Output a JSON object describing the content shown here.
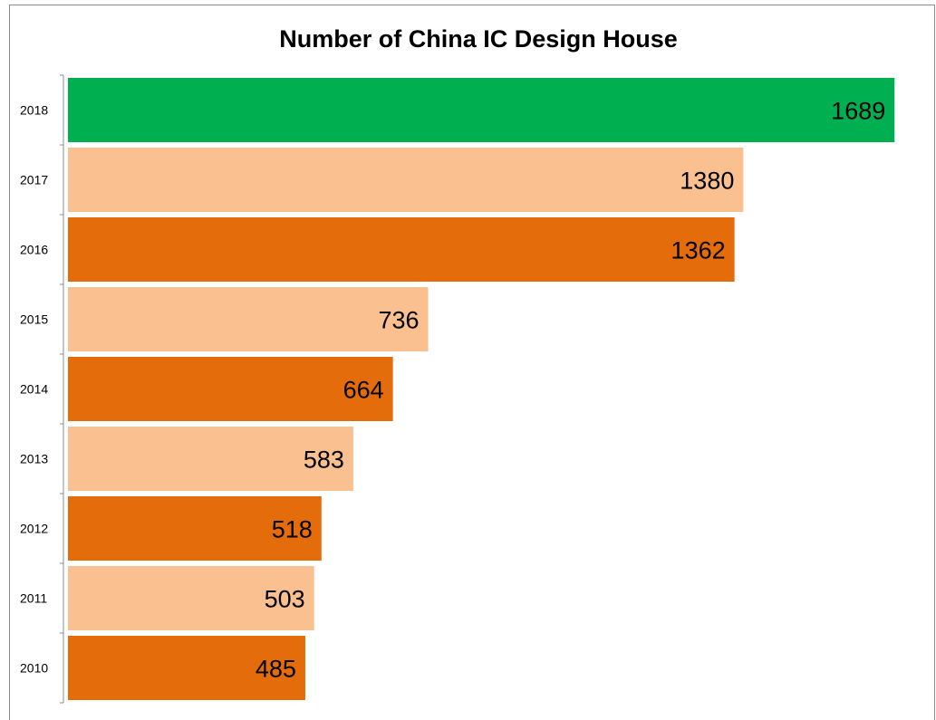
{
  "chart_data": {
    "type": "bar",
    "orientation": "horizontal",
    "title": "Number of China IC Design House",
    "categories": [
      "2018",
      "2017",
      "2016",
      "2015",
      "2014",
      "2013",
      "2012",
      "2011",
      "2010"
    ],
    "values": [
      1689,
      1380,
      1362,
      736,
      664,
      583,
      518,
      503,
      485
    ],
    "colors": [
      "#00b050",
      "#fac090",
      "#e46c0a",
      "#fac090",
      "#e46c0a",
      "#fac090",
      "#e46c0a",
      "#fac090",
      "#e46c0a"
    ],
    "xlim": [
      0,
      1720
    ],
    "grid": false,
    "legend": "none",
    "data_labels": true
  }
}
